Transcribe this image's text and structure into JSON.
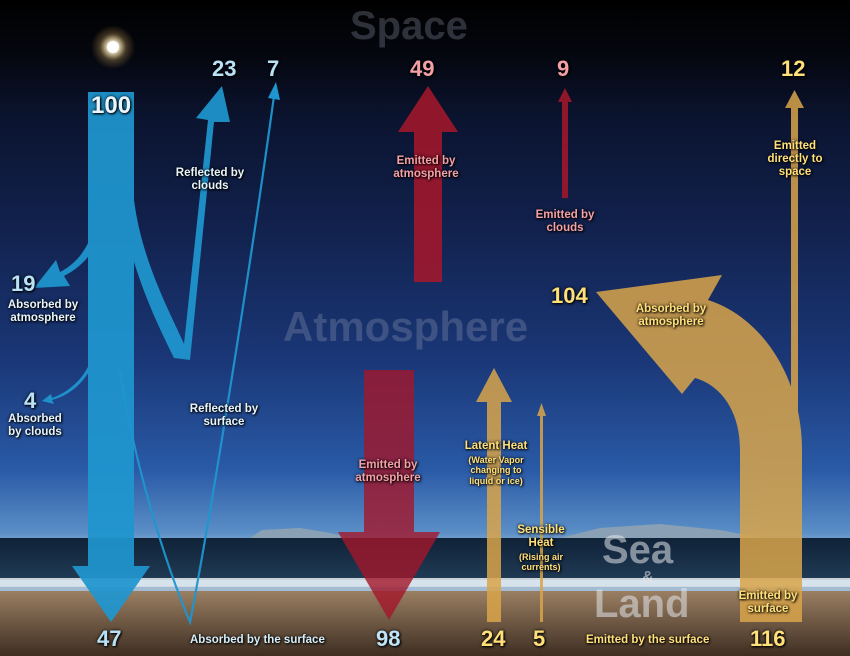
{
  "zones": {
    "space": "Space",
    "atmosphere": "Atmosphere",
    "sea": "Sea",
    "amp": "&",
    "land": "Land"
  },
  "incoming": {
    "total": "100",
    "reflected_clouds_value": "23",
    "reflected_clouds_label": "Reflected by clouds",
    "reflected_surface_value": "7",
    "reflected_surface_label": "Reflected by surface",
    "absorbed_atmosphere_value": "19",
    "absorbed_atmosphere_label": "Absorbed by atmosphere",
    "absorbed_clouds_value": "4",
    "absorbed_clouds_label": "Absorbed by clouds",
    "absorbed_surface_value": "47",
    "absorbed_surface_label": "Absorbed by the surface"
  },
  "atmosphere_emission": {
    "to_space_value": "49",
    "to_space_label": "Emitted by atmosphere",
    "clouds_value": "9",
    "clouds_label": "Emitted by clouds",
    "to_surface_value": "98",
    "to_surface_label": "Emitted by atmosphere"
  },
  "surface_emission": {
    "latent_value": "24",
    "latent_label": "Latent Heat",
    "latent_sub": "(Water Vapor changing to liquid or ice)",
    "sensible_value": "5",
    "sensible_label": "Sensible Heat",
    "sensible_sub": "(Rising air currents)",
    "emitted_label": "Emitted by the surface",
    "total_value": "116",
    "total_label": "Emitted by surface",
    "absorbed_atm_value": "104",
    "absorbed_atm_label": "Absorbed by atmosphere",
    "direct_value": "12",
    "direct_label": "Emitted directly to space"
  },
  "colors": {
    "solar": "#1f96cf",
    "atmospheric": "#a3172b",
    "surface": "#d9a54a"
  }
}
